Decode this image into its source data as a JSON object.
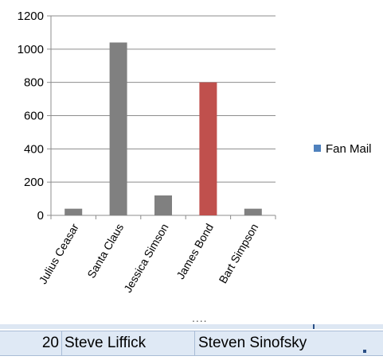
{
  "chart_data": {
    "type": "bar",
    "categories": [
      "Julius Ceasar",
      "Santa Claus",
      "Jessica Simson",
      "James Bond",
      "Bart Simpson"
    ],
    "series": [
      {
        "name": "Fan Mail",
        "values": [
          40,
          1040,
          120,
          800,
          40
        ]
      }
    ],
    "bar_colors": [
      "#808080",
      "#808080",
      "#808080",
      "#c0504d",
      "#808080"
    ],
    "legend_color": "#4f81bd",
    "y_ticks": [
      "0",
      "200",
      "400",
      "600",
      "800",
      "1000",
      "1200"
    ],
    "ylim": [
      0,
      1200
    ],
    "grid": true,
    "legend_position": "right",
    "title": "",
    "xlabel": "",
    "ylabel": ""
  },
  "sheet_row": {
    "number": "20",
    "col_a": "Steve Liffick",
    "col_b": "Steven Sinofsky"
  },
  "resize_dots": "...."
}
